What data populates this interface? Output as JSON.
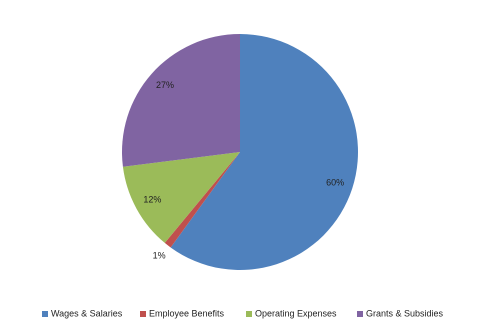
{
  "chart_data": {
    "type": "pie",
    "categories": [
      "Wages & Salaries",
      "Employee Benefits",
      "Operating Expenses",
      "Grants & Subsidies"
    ],
    "values": [
      60,
      1,
      12,
      27
    ],
    "value_labels": [
      "60%",
      "1%",
      "12%",
      "27%"
    ],
    "colors": [
      "#4f81bd",
      "#c0504d",
      "#9bbb59",
      "#8064a2"
    ],
    "legend": "bottom"
  }
}
